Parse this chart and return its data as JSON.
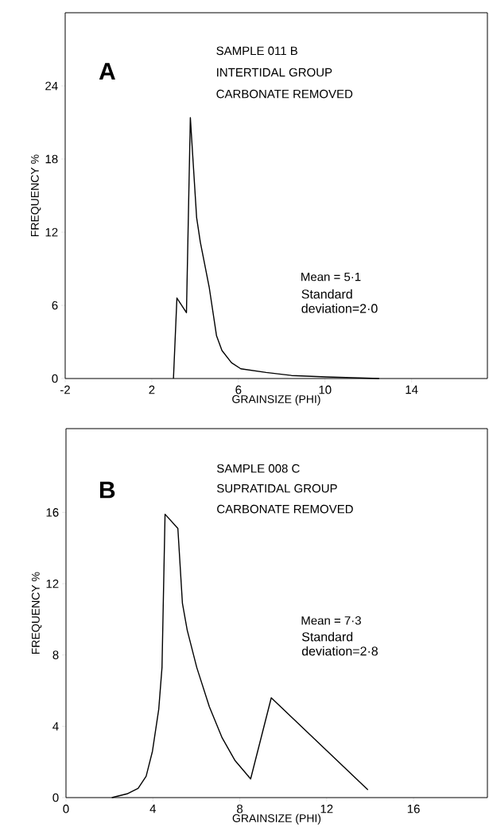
{
  "chart_data": [
    {
      "type": "line",
      "xlabel": "GRAINSIZE (PHI)",
      "ylabel": "FREQUENCY %",
      "color": "#000000",
      "x": [
        3.0,
        3.16,
        3.6,
        3.78,
        4.07,
        4.24,
        4.65,
        4.99,
        5.24,
        5.68,
        6.11,
        7.28,
        8.45,
        10.06,
        12.5
      ],
      "values": [
        0,
        6.6,
        5.4,
        21.4,
        13.2,
        11.2,
        7.5,
        3.5,
        2.3,
        1.3,
        0.8,
        0.5,
        0.25,
        0.13,
        0
      ],
      "xlim": [
        -2,
        17.5
      ],
      "ylim": [
        0,
        30
      ],
      "xticks": [
        -2,
        2,
        6,
        10,
        14
      ],
      "yticks": [
        0,
        6,
        12,
        18,
        24
      ],
      "annotations": [
        "A",
        "SAMPLE 011 B",
        "INTERTIDAL GROUP",
        "CARBONATE REMOVED",
        "Mean = 5·1",
        "Standard deviation=2·0"
      ]
    },
    {
      "type": "line",
      "xlabel": "GRAINSIZE (PHI)",
      "ylabel": "FREQUENCY %",
      "color": "#000000",
      "x": [
        2.11,
        2.81,
        3.32,
        3.69,
        3.98,
        4.27,
        4.42,
        4.56,
        5.15,
        5.36,
        5.58,
        6.02,
        6.6,
        7.19,
        7.77,
        8.5,
        9.45,
        13.9
      ],
      "values": [
        0,
        0.21,
        0.52,
        1.2,
        2.6,
        4.96,
        7.3,
        15.9,
        15.1,
        10.9,
        9.4,
        7.3,
        5.1,
        3.35,
        2.1,
        1.05,
        5.6,
        0.43
      ],
      "xlim": [
        0,
        19.4
      ],
      "ylim": [
        0,
        20.7
      ],
      "xticks": [
        0,
        4,
        8,
        12,
        16
      ],
      "yticks": [
        0,
        4,
        8,
        12,
        16
      ],
      "annotations": [
        "B",
        "SAMPLE 008 C",
        "SUPRATIDAL GROUP",
        "CARBONATE REMOVED",
        "Mean = 7·3",
        "Standard deviation=2·8"
      ]
    }
  ]
}
